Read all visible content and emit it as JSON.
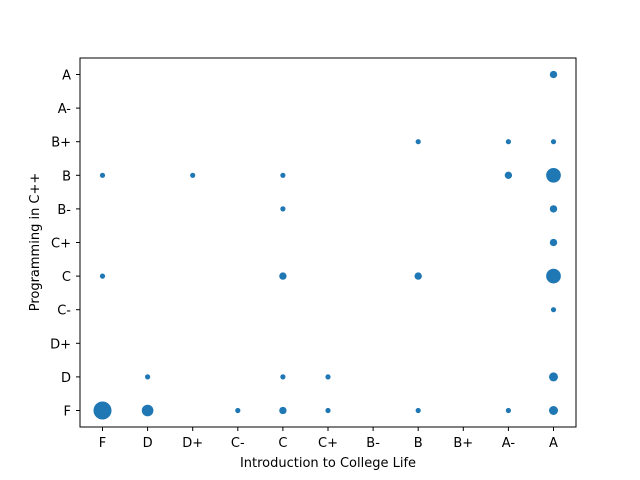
{
  "chart_data": {
    "type": "scatter",
    "title": "",
    "xlabel": "Introduction to College Life",
    "ylabel": "Programming in C++",
    "x_categories": [
      "F",
      "D",
      "D+",
      "C-",
      "C",
      "C+",
      "B-",
      "B",
      "B+",
      "A-",
      "A"
    ],
    "y_categories": [
      "F",
      "D",
      "D+",
      "C-",
      "C",
      "C+",
      "B-",
      "B",
      "B+",
      "A-",
      "A"
    ],
    "grid": false,
    "legend": "none",
    "marker_color": "#1f77b4",
    "size_encoding": "count",
    "points": [
      {
        "x": "F",
        "y": "F",
        "count": 12
      },
      {
        "x": "F",
        "y": "C",
        "count": 1
      },
      {
        "x": "F",
        "y": "B",
        "count": 1
      },
      {
        "x": "D",
        "y": "F",
        "count": 5
      },
      {
        "x": "D",
        "y": "D",
        "count": 1
      },
      {
        "x": "D+",
        "y": "B",
        "count": 1
      },
      {
        "x": "C-",
        "y": "F",
        "count": 1
      },
      {
        "x": "C",
        "y": "F",
        "count": 2
      },
      {
        "x": "C",
        "y": "D",
        "count": 1
      },
      {
        "x": "C",
        "y": "C",
        "count": 2
      },
      {
        "x": "C",
        "y": "B-",
        "count": 1
      },
      {
        "x": "C",
        "y": "B",
        "count": 1
      },
      {
        "x": "C+",
        "y": "F",
        "count": 1
      },
      {
        "x": "C+",
        "y": "D",
        "count": 1
      },
      {
        "x": "B",
        "y": "F",
        "count": 1
      },
      {
        "x": "B",
        "y": "C",
        "count": 2
      },
      {
        "x": "B",
        "y": "B+",
        "count": 1
      },
      {
        "x": "A-",
        "y": "F",
        "count": 1
      },
      {
        "x": "A-",
        "y": "B",
        "count": 2
      },
      {
        "x": "A-",
        "y": "B+",
        "count": 1
      },
      {
        "x": "A",
        "y": "F",
        "count": 3
      },
      {
        "x": "A",
        "y": "D",
        "count": 3
      },
      {
        "x": "A",
        "y": "C-",
        "count": 1
      },
      {
        "x": "A",
        "y": "C",
        "count": 8
      },
      {
        "x": "A",
        "y": "C+",
        "count": 2
      },
      {
        "x": "A",
        "y": "B-",
        "count": 2
      },
      {
        "x": "A",
        "y": "B",
        "count": 8
      },
      {
        "x": "A",
        "y": "B+",
        "count": 1
      },
      {
        "x": "A",
        "y": "A",
        "count": 2
      }
    ]
  }
}
